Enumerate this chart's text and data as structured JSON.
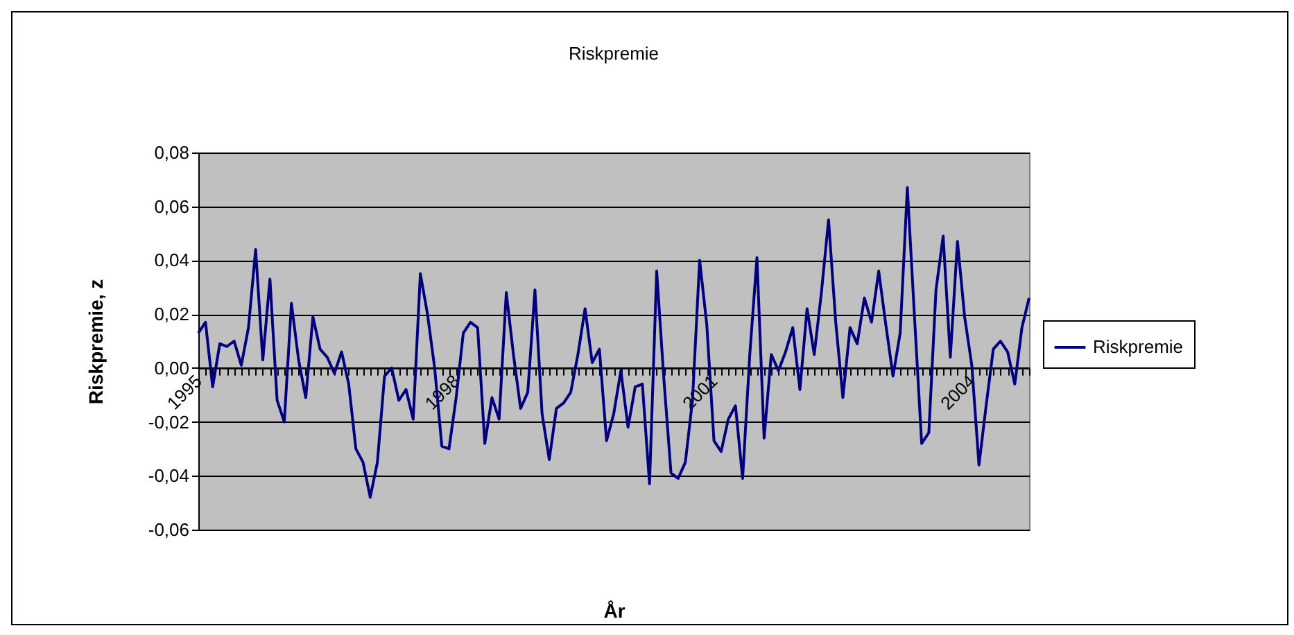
{
  "chart_data": {
    "type": "line",
    "title": "Riskpremie",
    "xlabel": "År",
    "ylabel": "Riskpremie, z",
    "categories": [
      "1995",
      null,
      null,
      null,
      null,
      null,
      null,
      null,
      null,
      null,
      null,
      null,
      null,
      null,
      null,
      null,
      null,
      null,
      null,
      null,
      null,
      null,
      null,
      null,
      null,
      null,
      null,
      null,
      null,
      null,
      null,
      null,
      null,
      null,
      null,
      null,
      "1998",
      null,
      null,
      null,
      null,
      null,
      null,
      null,
      null,
      null,
      null,
      null,
      null,
      null,
      null,
      null,
      null,
      null,
      null,
      null,
      null,
      null,
      null,
      null,
      null,
      null,
      null,
      null,
      null,
      null,
      null,
      null,
      null,
      null,
      null,
      null,
      "2001",
      null,
      null,
      null,
      null,
      null,
      null,
      null,
      null,
      null,
      null,
      null,
      null,
      null,
      null,
      null,
      null,
      null,
      null,
      null,
      null,
      null,
      null,
      null,
      null,
      null,
      null,
      null,
      null,
      null,
      null,
      null,
      null,
      null,
      null,
      null,
      "2004",
      null,
      null,
      null,
      null,
      null,
      null,
      null,
      null
    ],
    "series": [
      {
        "name": "Riskpremie",
        "color": "#000080",
        "values": [
          0.013,
          0.017,
          -0.007,
          0.009,
          0.008,
          0.01,
          0.001,
          0.015,
          0.044,
          0.003,
          0.033,
          -0.012,
          -0.02,
          0.024,
          0.003,
          -0.011,
          0.019,
          0.007,
          0.004,
          -0.002,
          0.006,
          -0.006,
          -0.03,
          -0.035,
          -0.048,
          -0.035,
          -0.003,
          0.0,
          -0.012,
          -0.008,
          -0.019,
          0.035,
          0.02,
          0.0,
          -0.029,
          -0.03,
          -0.011,
          0.013,
          0.017,
          0.015,
          -0.028,
          -0.011,
          -0.019,
          0.028,
          0.005,
          -0.015,
          -0.009,
          0.029,
          -0.017,
          -0.034,
          -0.015,
          -0.013,
          -0.009,
          0.005,
          0.022,
          0.002,
          0.007,
          -0.027,
          -0.017,
          -0.001,
          -0.022,
          -0.007,
          -0.006,
          -0.043,
          0.036,
          -0.004,
          -0.039,
          -0.041,
          -0.035,
          -0.012,
          0.04,
          0.016,
          -0.027,
          -0.031,
          -0.019,
          -0.014,
          -0.041,
          0.005,
          0.041,
          -0.026,
          0.005,
          -0.001,
          0.006,
          0.015,
          -0.008,
          0.022,
          0.005,
          0.028,
          0.055,
          0.017,
          -0.011,
          0.015,
          0.009,
          0.026,
          0.017,
          0.036,
          0.016,
          -0.003,
          0.013,
          0.067,
          0.019,
          -0.028,
          -0.024,
          0.029,
          0.049,
          0.004,
          0.047,
          0.019,
          0.001,
          -0.036,
          -0.014,
          0.007,
          0.01,
          0.006,
          -0.006,
          0.015,
          0.026
        ]
      }
    ],
    "ylim": [
      -0.06,
      0.08
    ],
    "yticks": [
      {
        "value": -0.06,
        "label": "-0,06"
      },
      {
        "value": -0.04,
        "label": "-0,04"
      },
      {
        "value": -0.02,
        "label": "-0,02"
      },
      {
        "value": 0,
        "label": "0,00"
      },
      {
        "value": 0.02,
        "label": "0,02"
      },
      {
        "value": 0.04,
        "label": "0,04"
      },
      {
        "value": 0.06,
        "label": "0,06"
      },
      {
        "value": 0.08,
        "label": "0,08"
      }
    ],
    "grid": "y",
    "legend": "right",
    "marker": "none",
    "line_style": "solid"
  }
}
